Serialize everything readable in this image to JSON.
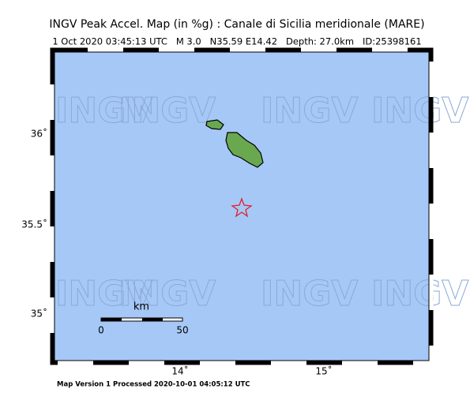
{
  "header": {
    "title": "INGV Peak Accel. Map (in %g) : Canale di Sicilia meridionale (MARE)",
    "subtitle": "1 Oct 2020 03:45:13 UTC   M 3.0   N35.59 E14.42   Depth: 27.0km   ID:25398161"
  },
  "map": {
    "watermark": "INGV",
    "lat_labels": [
      "36˚",
      "35.5˚",
      "35˚"
    ],
    "lon_labels": [
      "14˚",
      "15˚"
    ],
    "scale_bar": {
      "unit": "km",
      "start": "0",
      "end": "50"
    }
  },
  "footer": "Map Version 1 Processed 2020-10-01 04:05:12 UTC"
}
